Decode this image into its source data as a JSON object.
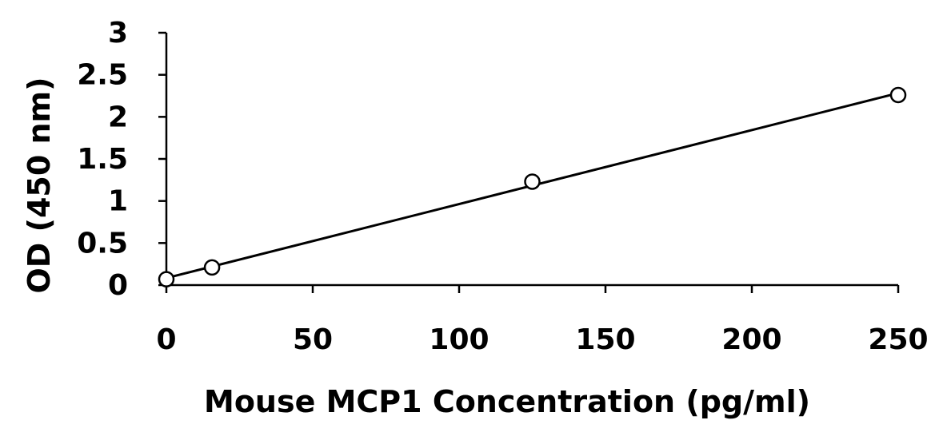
{
  "chart_data": {
    "type": "scatter",
    "title": "",
    "xlabel": "Mouse MCP1 Concentration (pg/ml)",
    "ylabel": "OD (450 nm)",
    "xlim": [
      0,
      250
    ],
    "ylim": [
      0,
      3
    ],
    "x_ticks": [
      "0",
      "50",
      "100",
      "150",
      "200",
      "250"
    ],
    "y_ticks": [
      "0",
      "0.5",
      "1",
      "1.5",
      "2",
      "2.5",
      "3"
    ],
    "grid": false,
    "legend": "none",
    "marker": "open-circle",
    "trendline": "linear",
    "series": [
      {
        "x": [
          0,
          15.6,
          125,
          250
        ],
        "y": [
          0.07,
          0.21,
          1.23,
          2.26
        ]
      }
    ],
    "colors": {
      "line": "#000000",
      "marker_fill": "#ffffff"
    }
  }
}
